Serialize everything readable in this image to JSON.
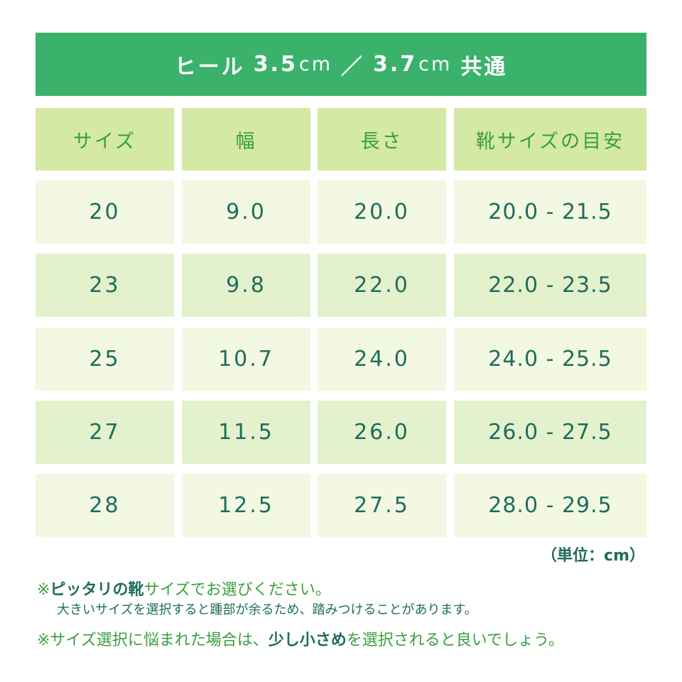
{
  "header": {
    "title_parts": [
      "ヒール",
      "3.5",
      "cm",
      "／",
      "3.7",
      "cm",
      "共通"
    ]
  },
  "table": {
    "columns": [
      "サイズ",
      "幅",
      "長さ",
      "靴サイズの目安"
    ],
    "rows": [
      [
        "20",
        "9.0",
        "20.0",
        "20.0 - 21.5"
      ],
      [
        "23",
        "9.8",
        "22.0",
        "22.0 - 23.5"
      ],
      [
        "25",
        "10.7",
        "24.0",
        "24.0 - 25.5"
      ],
      [
        "27",
        "11.5",
        "26.0",
        "26.0 - 27.5"
      ],
      [
        "28",
        "12.5",
        "27.5",
        "28.0 - 29.5"
      ]
    ]
  },
  "unit": "（単位：cm）",
  "notes": {
    "note1": [
      "※",
      "ピッタリの靴",
      "サイズでお選びください。"
    ],
    "note1_sub": "大きいサイズを選択すると踵部が余るため、踏みつけることがあります。",
    "note2": [
      "※サイズ選択に悩まれた場合は、",
      "少し小さめ",
      "を選択されると良いでしょう。"
    ]
  }
}
